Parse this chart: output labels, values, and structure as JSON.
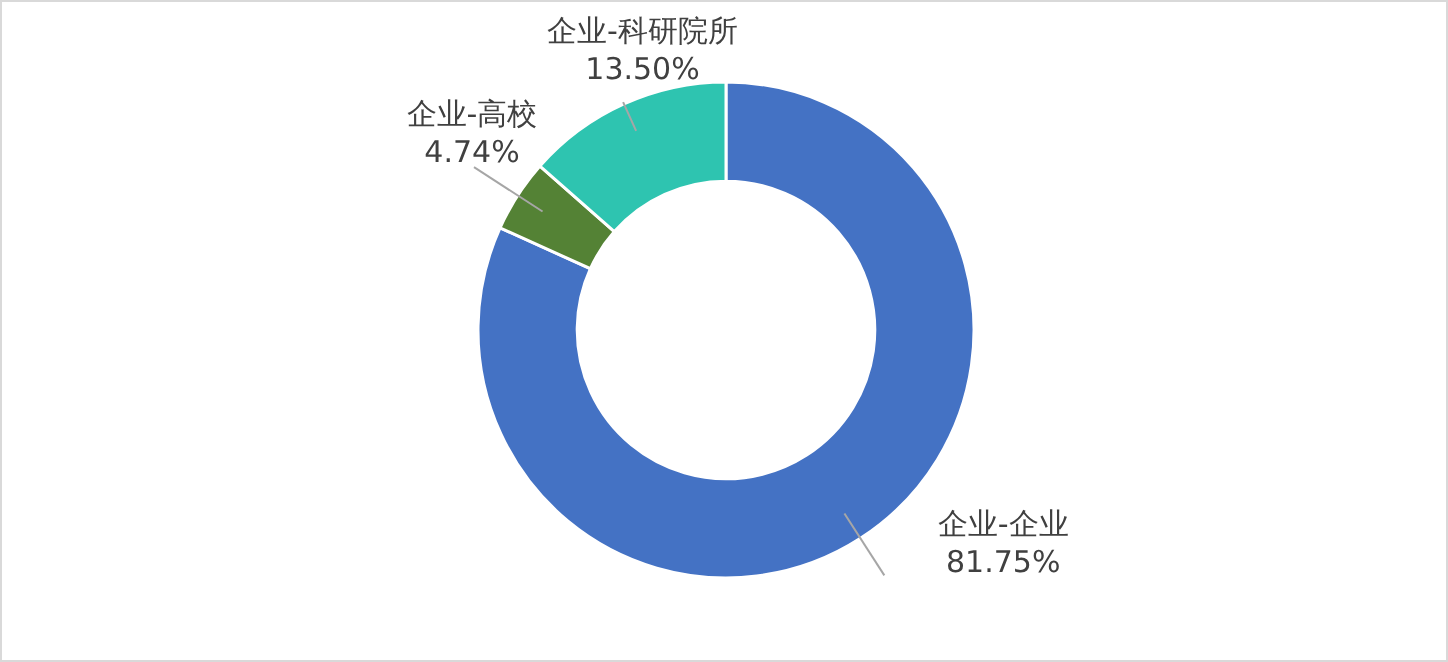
{
  "chart_data": {
    "type": "donut",
    "categories": [
      "企业-企业",
      "企业-高校",
      "企业-科研院所"
    ],
    "values": [
      81.75,
      4.74,
      13.5
    ],
    "colors": [
      "#4472c4",
      "#548235",
      "#2ec4b0"
    ],
    "value_labels": [
      "81.75%",
      "4.74%",
      "13.50%"
    ]
  }
}
